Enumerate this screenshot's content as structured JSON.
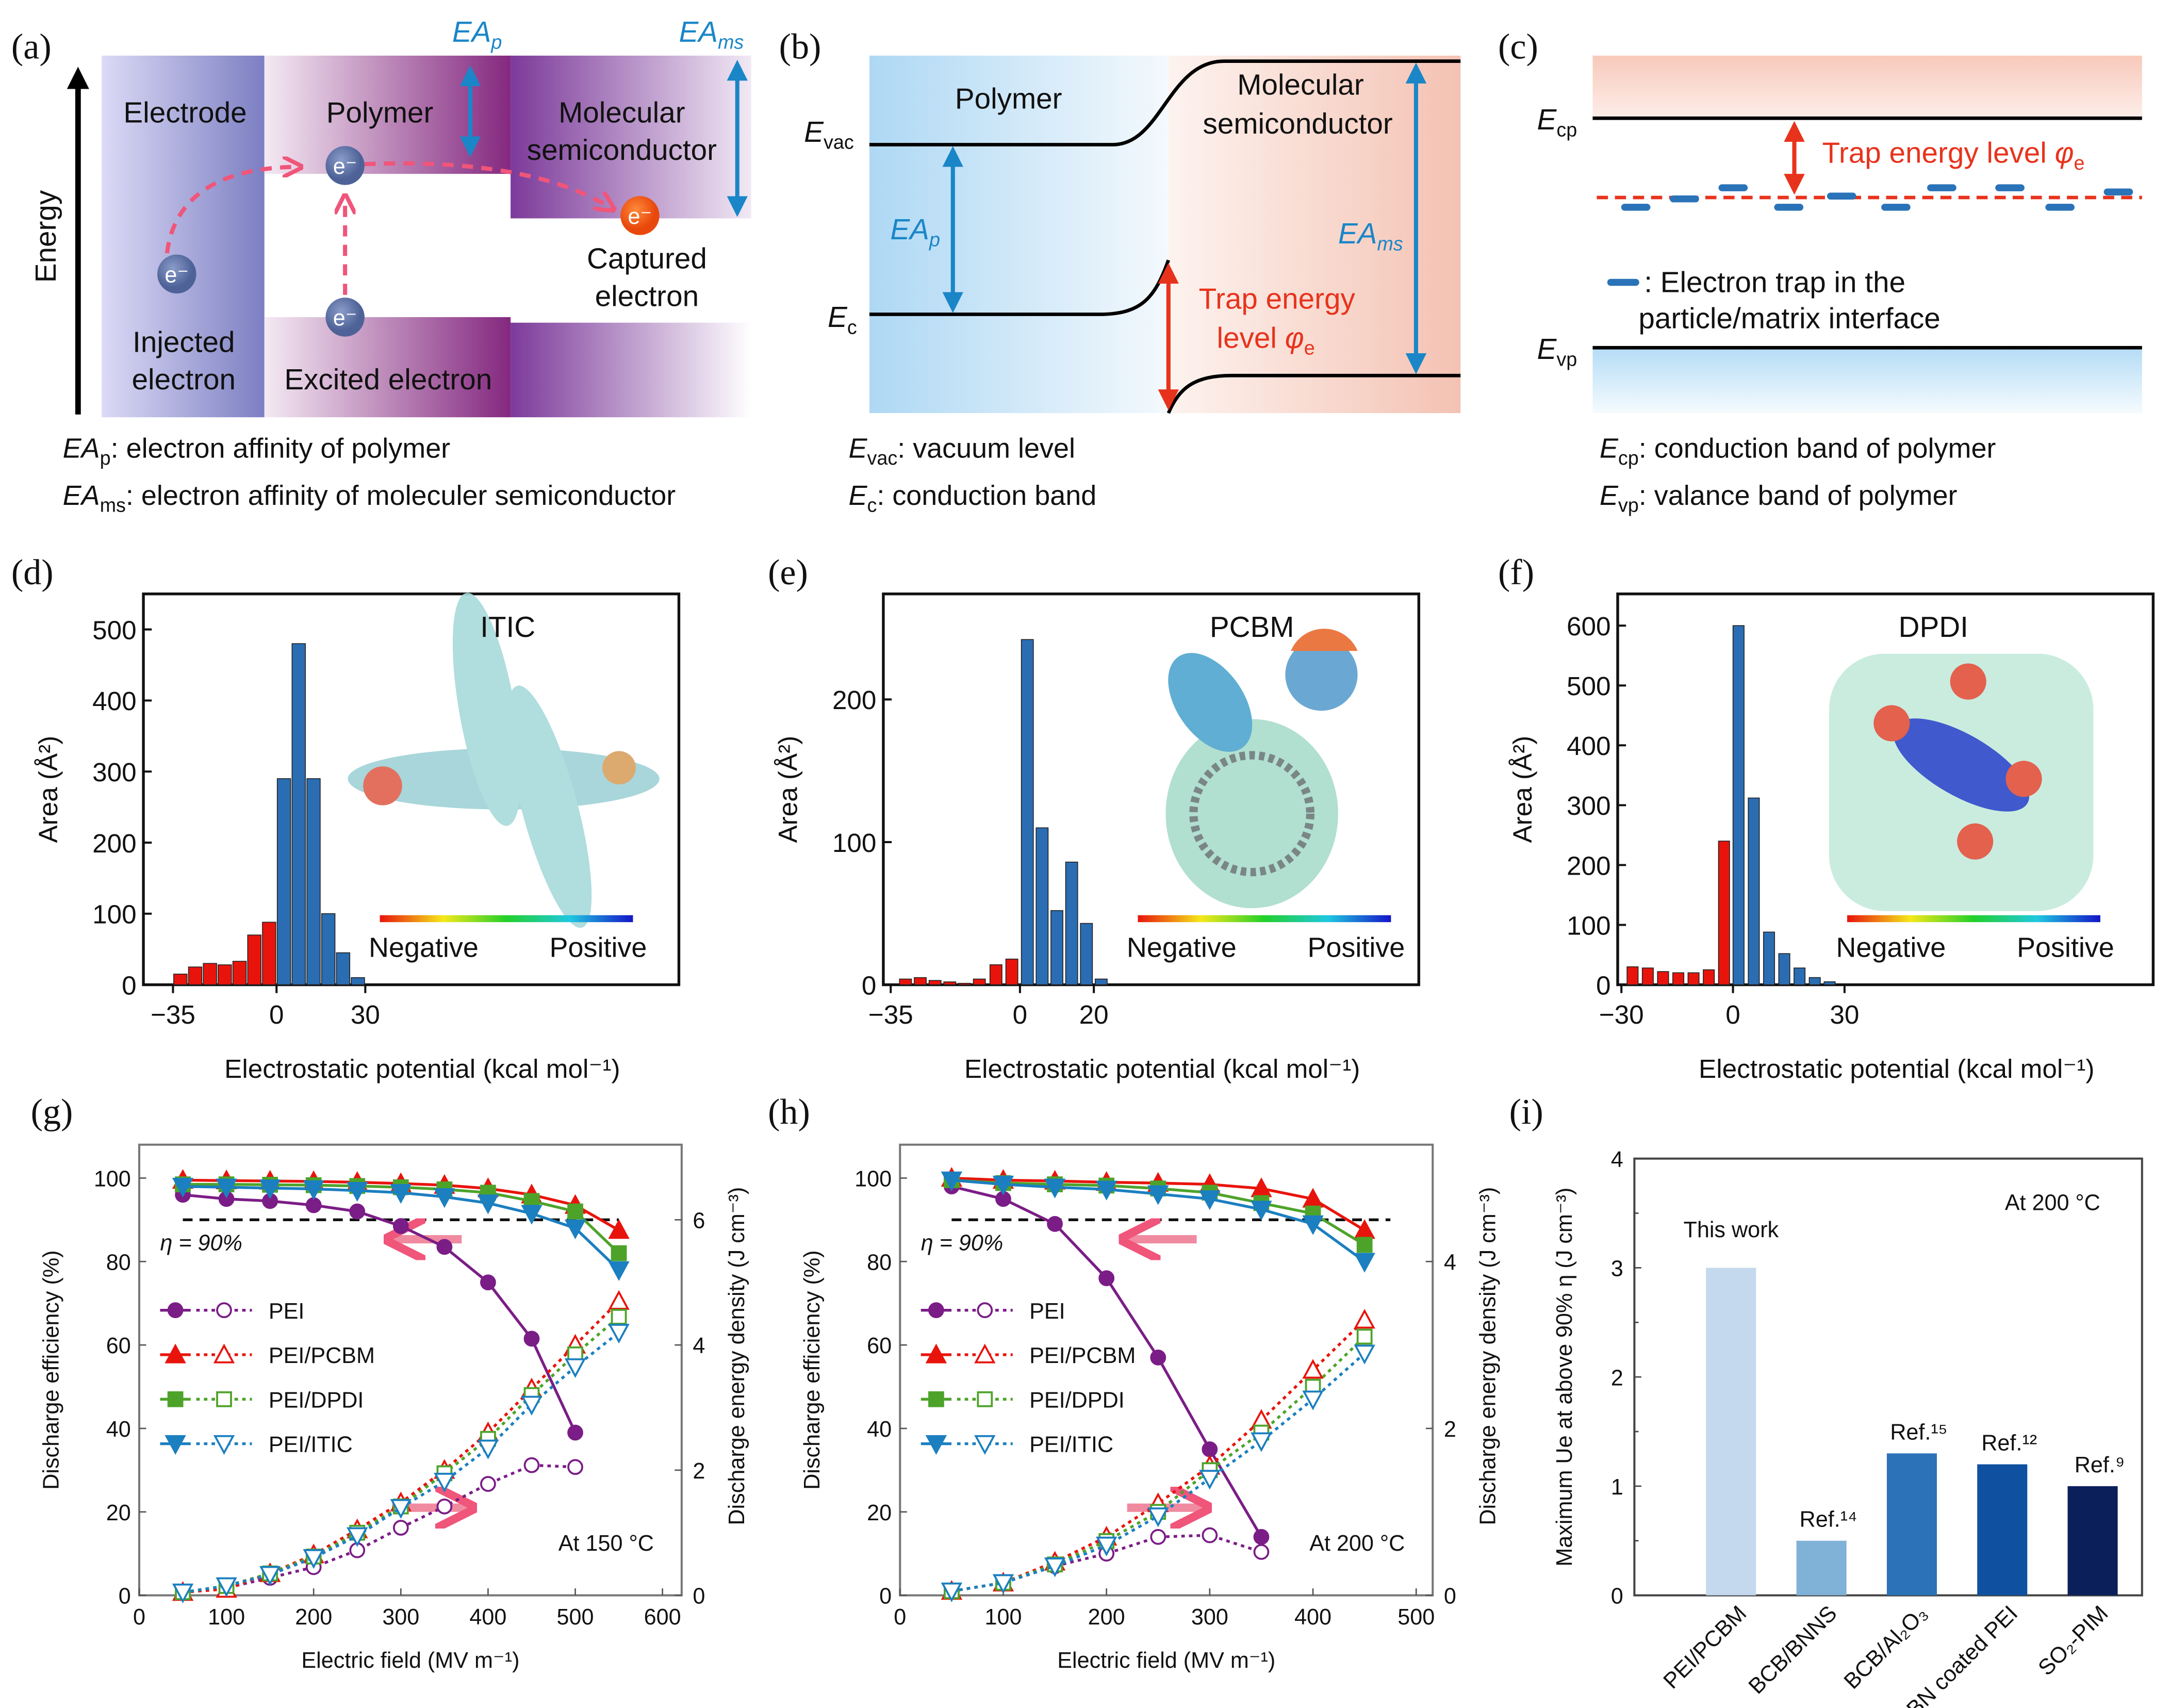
{
  "panel_labels": {
    "a": "(a)",
    "b": "(b)",
    "c": "(c)",
    "d": "(d)",
    "e": "(e)",
    "f": "(f)",
    "g": "(g)",
    "h": "(h)",
    "i": "(i)"
  },
  "diagram_a": {
    "axis_label": "Energy",
    "electrode": "Electrode",
    "polymer": "Polymer",
    "mol_line1": "Molecular",
    "mol_line2": "semiconductor",
    "captured_line1": "Captured",
    "captured_line2": "electron",
    "injected_line1": "Injected",
    "injected_line2": "electron",
    "excited": "Excited electron",
    "electron_symbol": "e⁻",
    "ea_p": {
      "main": "EA",
      "sub": "p"
    },
    "ea_ms": {
      "main": "EA",
      "sub": "ms"
    }
  },
  "diagram_b": {
    "polymer": "Polymer",
    "mol_line1": "Molecular",
    "mol_line2": "semiconductor",
    "e_vac": {
      "main": "E",
      "sub": "vac"
    },
    "e_c": {
      "main": "E",
      "sub": "c"
    },
    "ea_p": {
      "main": "EA",
      "sub": "p"
    },
    "ea_ms": {
      "main": "EA",
      "sub": "ms"
    },
    "trap_line1": "Trap energy",
    "trap_line2": "level ",
    "phi": "φ",
    "phi_sub": "e"
  },
  "diagram_c": {
    "e_cp": {
      "main": "E",
      "sub": "cp"
    },
    "e_vp": {
      "main": "E",
      "sub": "vp"
    },
    "trap_label": "Trap energy level ",
    "phi": "φ",
    "phi_sub": "e",
    "legend_line1": ": Electron trap in the",
    "legend_line2": "particle/matrix interface"
  },
  "captions": {
    "a1": {
      "main": "EA",
      "sub": "p",
      "rest": ": electron affinity of polymer"
    },
    "a2": {
      "main": "EA",
      "sub": "ms",
      "rest": ": electron affinity of moleculer semiconductor"
    },
    "b1": {
      "main": "E",
      "sub": "vac",
      "rest": ": vacuum level"
    },
    "b2": {
      "main": "E",
      "sub": "c",
      "rest": ": conduction band"
    },
    "c1": {
      "main": "E",
      "sub": "cp",
      "rest": ": conduction band of polymer"
    },
    "c2": {
      "main": "E",
      "sub": "vp",
      "rest": ": valance band of polymer"
    }
  },
  "colors": {
    "negative": "#e8140c",
    "positive": "#2a6db3",
    "pei": "#7b1d86",
    "pcbm": "#e8140c",
    "dpdi": "#4da32a",
    "itic": "#1b7fc0"
  },
  "chart_data": [
    {
      "id": "d",
      "type": "bar",
      "title": "ITIC",
      "xlabel": "Electrostatic potential (kcal mol⁻¹)",
      "ylabel": "Area (Å²)",
      "xlim": [
        -45,
        136
      ],
      "ylim": [
        0,
        550
      ],
      "xticks": [
        "−35",
        "0",
        "30"
      ],
      "xtick_values": [
        -35,
        0,
        30
      ],
      "yticks": [
        "0",
        "100",
        "200",
        "300",
        "400",
        "500"
      ],
      "ytick_values": [
        0,
        100,
        200,
        300,
        400,
        500
      ],
      "bin_width": 5,
      "negative": {
        "x": [
          -32.5,
          -27.5,
          -22.5,
          -17.5,
          -12.5,
          -7.5,
          -2.5
        ],
        "values": [
          15,
          25,
          30,
          28,
          33,
          70,
          88
        ]
      },
      "positive": {
        "x": [
          2.5,
          7.5,
          12.5,
          17.5,
          22.5,
          27.5
        ],
        "values": [
          290,
          480,
          290,
          100,
          45,
          10
        ]
      },
      "colorbar": {
        "left": "Negative",
        "right": "Positive"
      }
    },
    {
      "id": "e",
      "type": "bar",
      "title": "PCBM",
      "xlabel": "Electrostatic potential (kcal mol⁻¹)",
      "ylabel": "Area (Å²)",
      "xlim": [
        -37,
        108
      ],
      "ylim": [
        0,
        274
      ],
      "xticks": [
        "−35",
        "0",
        "20"
      ],
      "xtick_values": [
        -35,
        0,
        20
      ],
      "yticks": [
        "0",
        "100",
        "200"
      ],
      "ytick_values": [
        0,
        100,
        200
      ],
      "bin_width": 3.6,
      "negative": {
        "x": [
          -31,
          -27,
          -23,
          -19,
          -15,
          -11,
          -6.5,
          -2.2
        ],
        "values": [
          4,
          5,
          3,
          2,
          1,
          4,
          14,
          18
        ]
      },
      "positive": {
        "x": [
          2,
          6,
          10,
          14,
          18,
          22
        ],
        "values": [
          242,
          110,
          52,
          86,
          43,
          4
        ]
      },
      "colorbar": {
        "left": "Negative",
        "right": "Positive"
      }
    },
    {
      "id": "f",
      "type": "bar",
      "title": "DPDI",
      "xlabel": "Electrostatic potential (kcal mol⁻¹)",
      "ylabel": "Area (Å²)",
      "xlim": [
        -31,
        113
      ],
      "ylim": [
        0,
        653
      ],
      "xticks": [
        "−30",
        "0",
        "30"
      ],
      "xtick_values": [
        -30,
        0,
        30
      ],
      "yticks": [
        "0",
        "100",
        "200",
        "300",
        "400",
        "500",
        "600"
      ],
      "ytick_values": [
        0,
        100,
        200,
        300,
        400,
        500,
        600
      ],
      "bin_width": 3.3,
      "negative": {
        "x": [
          -27,
          -22.9,
          -18.8,
          -14.7,
          -10.6,
          -6.5,
          -2.4
        ],
        "values": [
          30,
          28,
          22,
          20,
          20,
          25,
          240
        ]
      },
      "positive": {
        "x": [
          1.5,
          5.6,
          9.7,
          13.8,
          17.9,
          22,
          26
        ],
        "values": [
          600,
          312,
          88,
          52,
          28,
          12,
          5
        ]
      },
      "colorbar": {
        "left": "Negative",
        "right": "Positive"
      }
    },
    {
      "id": "g",
      "type": "line",
      "xlabel": "Electric field (MV m⁻¹)",
      "ylabel": "Discharge efficiency (%)",
      "y2label": "Discharge energy density (J cm⁻³)",
      "xlim": [
        0,
        622
      ],
      "ylim": [
        0,
        108
      ],
      "y2lim": [
        0,
        7.2
      ],
      "xticks": [
        "0",
        "100",
        "200",
        "300",
        "400",
        "500",
        "600"
      ],
      "xtick_values": [
        0,
        100,
        200,
        300,
        400,
        500,
        600
      ],
      "yticks": [
        "0",
        "20",
        "40",
        "60",
        "80",
        "100"
      ],
      "ytick_values": [
        0,
        20,
        40,
        60,
        80,
        100
      ],
      "y2ticks": [
        "0",
        "2",
        "4",
        "6"
      ],
      "y2tick_values": [
        0,
        2,
        4,
        6
      ],
      "threshold": {
        "value": 90,
        "label": "η = 90%"
      },
      "annotation": "At 150 °C",
      "series": [
        {
          "name": "PEI",
          "marker": "circle",
          "x": [
            50,
            100,
            150,
            200,
            250,
            300,
            350,
            400,
            450,
            500
          ],
          "efficiency": [
            96,
            95,
            94.5,
            93.5,
            92,
            88.5,
            83.5,
            75,
            61.5,
            39
          ],
          "energy": [
            0.05,
            0.12,
            0.28,
            0.45,
            0.72,
            1.08,
            1.42,
            1.78,
            2.08,
            2.05
          ]
        },
        {
          "name": "PEI/PCBM",
          "marker": "triangle-up",
          "x": [
            50,
            100,
            150,
            200,
            250,
            300,
            350,
            400,
            450,
            500,
            550
          ],
          "efficiency": [
            99.5,
            99.4,
            99.3,
            99.2,
            99,
            98.7,
            98.3,
            97.5,
            96,
            93.5,
            87.5
          ],
          "energy": [
            0.05,
            0.1,
            0.35,
            0.65,
            1.05,
            1.48,
            2.0,
            2.6,
            3.3,
            4.0,
            4.7
          ]
        },
        {
          "name": "PEI/DPDI",
          "marker": "square",
          "x": [
            50,
            100,
            150,
            200,
            250,
            300,
            350,
            400,
            450,
            500,
            550
          ],
          "efficiency": [
            98.5,
            98.5,
            98.4,
            98.3,
            98.1,
            97.8,
            97.3,
            96.5,
            94.5,
            92,
            82
          ],
          "energy": [
            0.05,
            0.15,
            0.35,
            0.62,
            1.0,
            1.42,
            1.95,
            2.5,
            3.2,
            3.85,
            4.45
          ]
        },
        {
          "name": "PEI/ITIC",
          "marker": "triangle-down",
          "x": [
            50,
            100,
            150,
            200,
            250,
            300,
            350,
            400,
            450,
            500,
            550
          ],
          "efficiency": [
            98,
            97.8,
            97.6,
            97.4,
            97,
            96.5,
            95.5,
            94,
            91.5,
            88,
            78
          ],
          "energy": [
            0.05,
            0.15,
            0.33,
            0.6,
            0.95,
            1.4,
            1.82,
            2.35,
            3.05,
            3.65,
            4.2
          ]
        }
      ]
    },
    {
      "id": "h",
      "type": "line",
      "xlabel": "Electric field (MV m⁻¹)",
      "ylabel": "Discharge efficiency (%)",
      "y2label": "Discharge energy density (J cm⁻³)",
      "xlim": [
        0,
        516
      ],
      "ylim": [
        0,
        108
      ],
      "y2lim": [
        0,
        5.4
      ],
      "xticks": [
        "0",
        "100",
        "200",
        "300",
        "400",
        "500"
      ],
      "xtick_values": [
        0,
        100,
        200,
        300,
        400,
        500
      ],
      "yticks": [
        "0",
        "20",
        "40",
        "60",
        "80",
        "100"
      ],
      "ytick_values": [
        0,
        20,
        40,
        60,
        80,
        100
      ],
      "y2ticks": [
        "0",
        "2",
        "4"
      ],
      "y2tick_values": [
        0,
        2,
        4
      ],
      "threshold": {
        "value": 90,
        "label": "η = 90%"
      },
      "annotation": "At 200 °C",
      "series": [
        {
          "name": "PEI",
          "marker": "circle",
          "x": [
            50,
            100,
            150,
            200,
            250,
            300,
            350
          ],
          "efficiency": [
            98,
            95,
            89,
            76,
            57,
            35,
            14
          ],
          "energy": [
            0.05,
            0.15,
            0.35,
            0.5,
            0.7,
            0.72,
            0.52
          ]
        },
        {
          "name": "PEI/PCBM",
          "marker": "triangle-up",
          "x": [
            50,
            100,
            150,
            200,
            250,
            300,
            350,
            400,
            450
          ],
          "efficiency": [
            100,
            99.5,
            99.3,
            99,
            98.8,
            98.5,
            97.5,
            95,
            87.5
          ],
          "energy": [
            0.05,
            0.15,
            0.4,
            0.7,
            1.1,
            1.55,
            2.1,
            2.7,
            3.3
          ]
        },
        {
          "name": "PEI/DPDI",
          "marker": "square",
          "x": [
            50,
            100,
            150,
            200,
            250,
            300,
            350,
            400,
            450
          ],
          "efficiency": [
            99.5,
            98.8,
            98.5,
            98.2,
            97.5,
            96.5,
            94,
            91.5,
            84
          ],
          "energy": [
            0.05,
            0.15,
            0.37,
            0.65,
            1.0,
            1.5,
            1.95,
            2.5,
            3.1
          ]
        },
        {
          "name": "PEI/ITIC",
          "marker": "triangle-down",
          "x": [
            50,
            100,
            150,
            200,
            250,
            300,
            350,
            400,
            450
          ],
          "efficiency": [
            99.5,
            98.5,
            97.8,
            97.3,
            96.2,
            95,
            92.5,
            89,
            80
          ],
          "energy": [
            0.05,
            0.15,
            0.35,
            0.6,
            0.95,
            1.4,
            1.85,
            2.35,
            2.9
          ]
        }
      ]
    },
    {
      "id": "i",
      "type": "bar",
      "ylabel": "Maximum Ue at above 90% η (J cm⁻³)",
      "ylim": [
        0,
        4
      ],
      "yticks": [
        "0",
        "1",
        "2",
        "3",
        "4"
      ],
      "ytick_values": [
        0,
        1,
        2,
        3,
        4
      ],
      "annotation": "At 200 °C",
      "categories": [
        "PEI/PCBM",
        "BCB/BNNS",
        "BCB/Al₂O₃",
        "BN coated PEI",
        "SO₂-PIM"
      ],
      "values": [
        3.0,
        0.5,
        1.3,
        1.2,
        1.0
      ],
      "bar_labels": [
        "This work",
        "Ref.¹⁴",
        "Ref.¹⁵",
        "Ref.¹²",
        "Ref.⁹"
      ],
      "bar_colors": [
        "#c4d9ee",
        "#80b1d7",
        "#2c72b8",
        "#0f51a0",
        "#0b1f5b"
      ]
    }
  ]
}
